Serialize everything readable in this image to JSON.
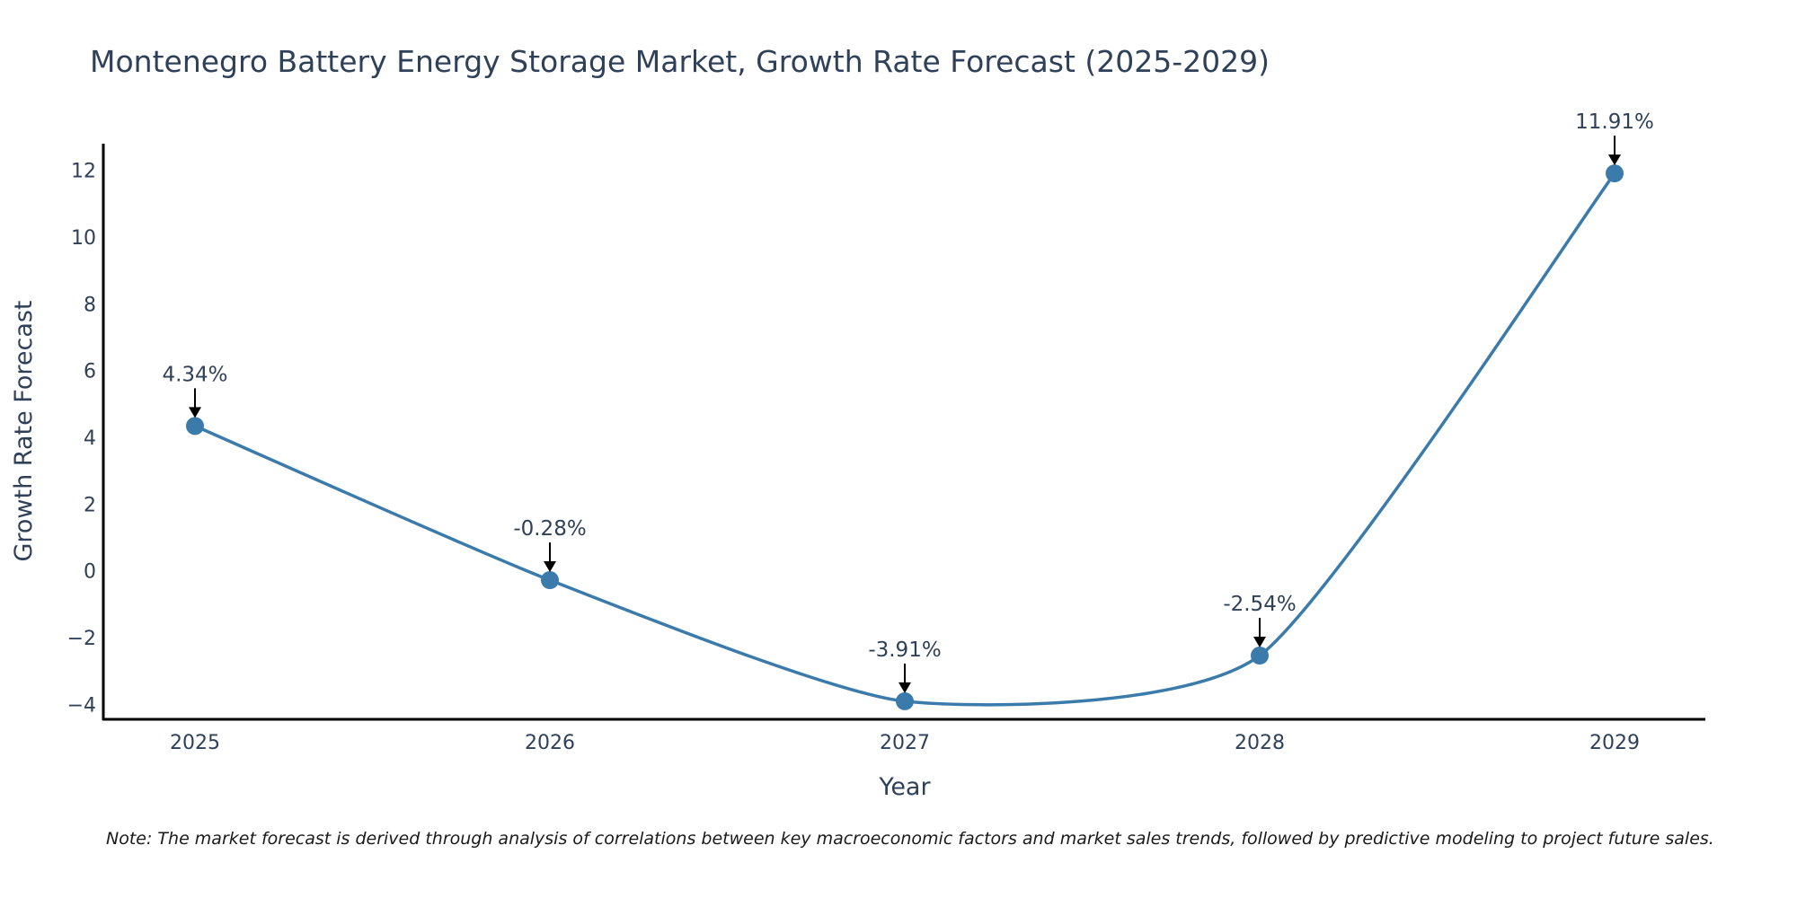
{
  "chart_data": {
    "type": "line",
    "title": "Montenegro Battery Energy Storage Market, Growth Rate Forecast (2025-2029)",
    "xlabel": "Year",
    "ylabel": "Growth Rate Forecast",
    "categories": [
      "2025",
      "2026",
      "2027",
      "2028",
      "2029"
    ],
    "values": [
      4.34,
      -0.28,
      -3.91,
      -2.54,
      11.91
    ],
    "annotations": [
      "4.34%",
      "-0.28%",
      "-3.91%",
      "-2.54%",
      "11.91%"
    ],
    "yticks": [
      -4,
      -2,
      0,
      2,
      4,
      6,
      8,
      10,
      12
    ],
    "ytick_labels": [
      "−4",
      "−2",
      "0",
      "2",
      "4",
      "6",
      "8",
      "10",
      "12"
    ],
    "ylim": [
      -4.45,
      12.8
    ],
    "grid": false,
    "line_color": "#3b7bab",
    "note": "Note: The market forecast is derived through analysis of correlations between key macroeconomic factors and market sales trends, followed by predictive modeling to project future sales."
  }
}
